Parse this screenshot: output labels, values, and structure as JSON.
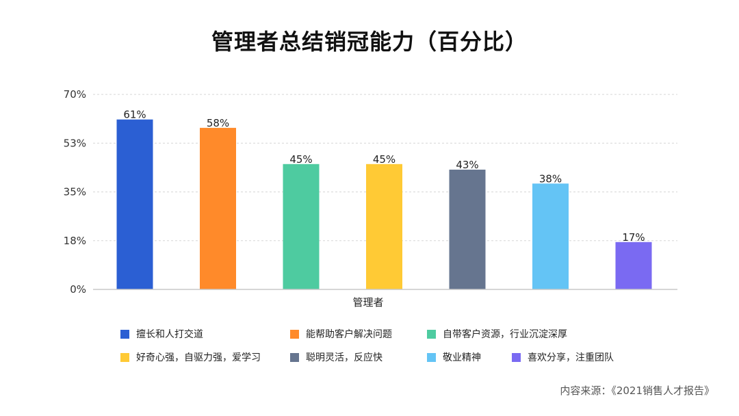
{
  "chart_data": {
    "type": "bar",
    "title": "管理者总结销冠能力（百分比）",
    "xlabel": "管理者",
    "ylabel": "",
    "ylim": [
      0,
      70
    ],
    "yticks": [
      "0%",
      "18%",
      "35%",
      "53%",
      "70%"
    ],
    "ytick_values": [
      0,
      17.5,
      35,
      52.5,
      70
    ],
    "grid": "horizontal dashed",
    "legend_position": "bottom",
    "series": [
      {
        "name": "擅长和人打交道",
        "value": 61,
        "label": "61%",
        "color": "#2B5FD3"
      },
      {
        "name": "能帮助客户解决问题",
        "value": 58,
        "label": "58%",
        "color": "#FF8A2A"
      },
      {
        "name": "自带客户资源，行业沉淀深厚",
        "value": 45,
        "label": "45%",
        "color": "#4ECBA0"
      },
      {
        "name": "好奇心强，自驱力强，爱学习",
        "value": 45,
        "label": "45%",
        "color": "#FFCA35"
      },
      {
        "name": "聪明灵活，反应快",
        "value": 43,
        "label": "43%",
        "color": "#66758F"
      },
      {
        "name": "敬业精神",
        "value": 38,
        "label": "38%",
        "color": "#64C4F5"
      },
      {
        "name": "喜欢分享，注重团队",
        "value": 17,
        "label": "17%",
        "color": "#7A6AF2"
      }
    ]
  },
  "source": "内容来源：《2021销售人才报告》"
}
